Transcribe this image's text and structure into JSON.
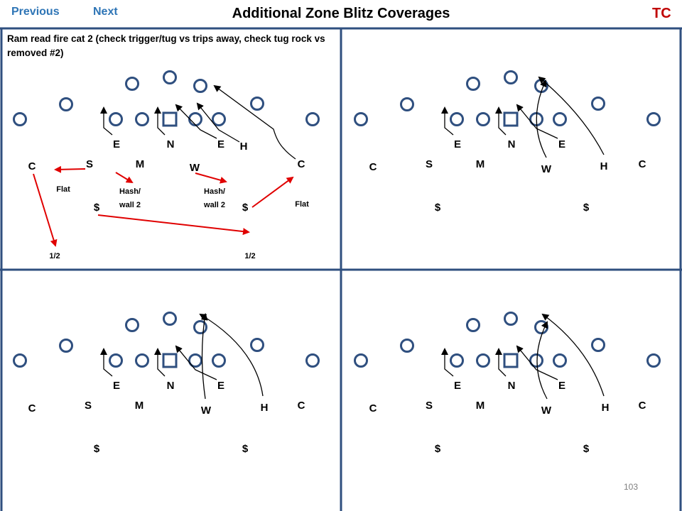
{
  "nav": {
    "previous": "Previous",
    "next": "Next"
  },
  "title": "Additional Zone Blitz Coverages",
  "badge": "TC",
  "page_number": "103",
  "colors": {
    "nav": "#2e75b6",
    "badge": "#c00000",
    "grid": "#2f4f7f",
    "player_ring": "#2f4f7f",
    "blitz_arrow": "#e00000"
  },
  "panels": [
    {
      "caption": "Ram read fire cat 2 (check trigger/tug vs trips away, check tug rock vs removed #2)",
      "defenders": {
        "e1": "E",
        "n": "N",
        "e2": "E",
        "h": "H",
        "c_left": "C",
        "s": "S",
        "m": "M",
        "w": "W",
        "c_right": "C",
        "safety_left": "$",
        "safety_right": "$"
      },
      "zones": {
        "flat_left": "Flat",
        "hash_left": [
          "Hash/",
          "wall 2"
        ],
        "hash_right": [
          "Hash/",
          "wall 2"
        ],
        "flat_right": "Flat",
        "half_left": "1/2",
        "half_right": "1/2"
      }
    },
    {
      "defenders": {
        "e1": "E",
        "n": "N",
        "e2": "E",
        "c_left": "C",
        "s": "S",
        "m": "M",
        "w": "W",
        "h": "H",
        "c_right": "C",
        "safety_left": "$",
        "safety_right": "$"
      }
    },
    {
      "defenders": {
        "e1": "E",
        "n": "N",
        "e2": "E",
        "c_left": "C",
        "s": "S",
        "m": "M",
        "w": "W",
        "h": "H",
        "c_right": "C",
        "safety_left": "$",
        "safety_right": "$"
      }
    },
    {
      "defenders": {
        "e1": "E",
        "n": "N",
        "e2": "E",
        "c_left": "C",
        "s": "S",
        "m": "M",
        "w": "W",
        "h": "H",
        "c_right": "C",
        "safety_left": "$",
        "safety_right": "$"
      }
    }
  ]
}
